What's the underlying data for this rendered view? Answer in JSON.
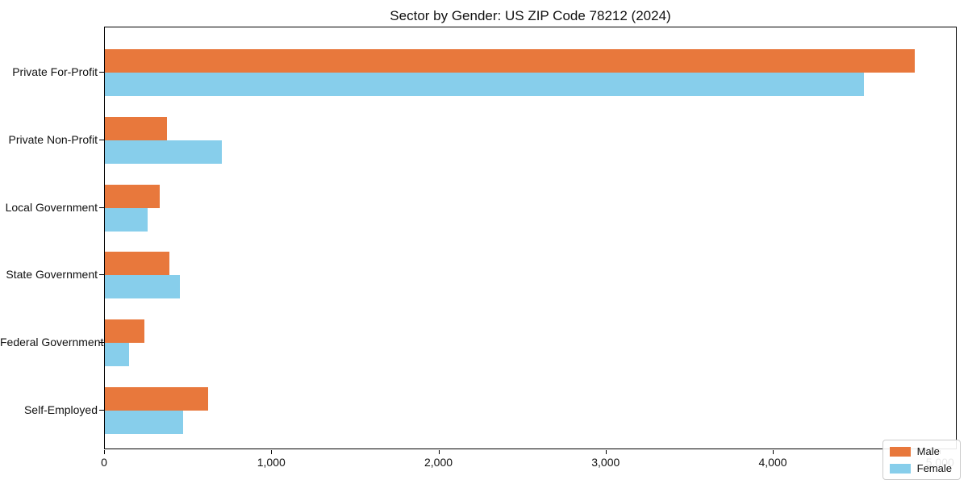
{
  "title": "Sector by Gender: US ZIP Code 78212 (2024)",
  "colors": {
    "male": "#e8783c",
    "female": "#87ceeb",
    "axis": "#000000",
    "legend_border": "#cccccc",
    "text": "#111111"
  },
  "legend": {
    "position": "lower right",
    "items": [
      {
        "label": "Male",
        "color_key": "male"
      },
      {
        "label": "Female",
        "color_key": "female"
      }
    ]
  },
  "chart_data": {
    "type": "bar",
    "orientation": "horizontal",
    "title": "Sector by Gender: US ZIP Code 78212 (2024)",
    "categories": [
      "Private For-Profit",
      "Private Non-Profit",
      "Local Government",
      "State Government",
      "Federal Government",
      "Self-Employed"
    ],
    "series": [
      {
        "name": "Male",
        "color_key": "male",
        "values": [
          4855,
          370,
          330,
          385,
          235,
          620
        ]
      },
      {
        "name": "Female",
        "color_key": "female",
        "values": [
          4550,
          700,
          255,
          450,
          145,
          470
        ]
      }
    ],
    "xlabel": "",
    "ylabel": "",
    "xlim": [
      0,
      5100
    ],
    "x_tick_values": [
      0,
      1000,
      2000,
      3000,
      4000,
      5000
    ],
    "x_tick_labels": [
      "0",
      "1,000",
      "2,000",
      "3,000",
      "4,000",
      "5,000"
    ],
    "grid": false,
    "legend_position": "lower right"
  }
}
